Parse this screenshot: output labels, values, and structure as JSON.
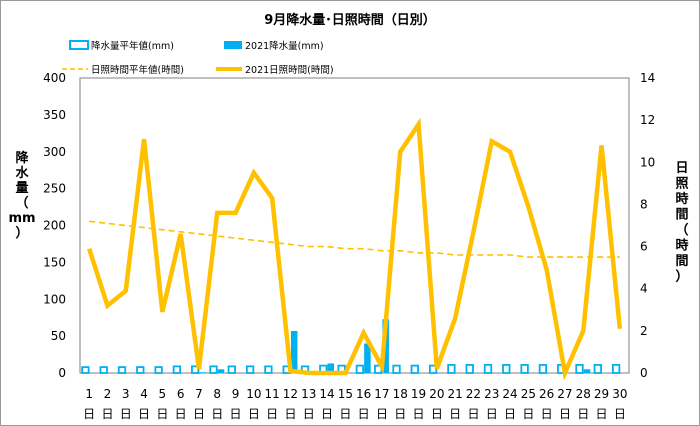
{
  "chart_data": {
    "type": "bar+line",
    "title": "9月降水量･日照時間（日別）",
    "y_left_label": "降水量（mm）",
    "y_right_label": "日照時間（時間）",
    "y_left_range": [
      0,
      400
    ],
    "y_left_ticks": [
      "0",
      "50",
      "100",
      "150",
      "200",
      "250",
      "300",
      "350",
      "400"
    ],
    "y_right_range": [
      0,
      14
    ],
    "y_right_ticks": [
      "0",
      "2",
      "4",
      "6",
      "8",
      "10",
      "12",
      "14"
    ],
    "categories": [
      "1",
      "2",
      "3",
      "4",
      "5",
      "6",
      "7",
      "8",
      "9",
      "10",
      "11",
      "12",
      "13",
      "14",
      "15",
      "16",
      "17",
      "18",
      "19",
      "20",
      "21",
      "22",
      "23",
      "24",
      "25",
      "26",
      "27",
      "28",
      "29",
      "30"
    ],
    "x_suffix": "日",
    "legend": {
      "precip_normal": "降水量平年値(mm)",
      "precip_2021": "2021降水量(mm)",
      "sun_normal": "日照時間平年値(時間)",
      "sun_2021": "2021日照時間(時間)"
    },
    "colors": {
      "precip_normal": "#00b0f0",
      "precip_2021": "#00b0f0",
      "sun_normal": "#ffc000",
      "sun_2021": "#ffc000"
    },
    "series": [
      {
        "name": "降水量平年値(mm)",
        "axis": "left",
        "kind": "bar-outline",
        "values": [
          8,
          8,
          8,
          8,
          8,
          9,
          9,
          9,
          9,
          9,
          9,
          9,
          9,
          10,
          10,
          10,
          10,
          10,
          10,
          10,
          11,
          11,
          11,
          11,
          11,
          11,
          11,
          11,
          11,
          11
        ]
      },
      {
        "name": "2021降水量(mm)",
        "axis": "left",
        "kind": "bar",
        "values": [
          0,
          0,
          0,
          0,
          0,
          0,
          1,
          5,
          0,
          0,
          0,
          57,
          0,
          13,
          0,
          40,
          73,
          0,
          0,
          0,
          0,
          0,
          0,
          0,
          0,
          0,
          0,
          5,
          0,
          0
        ]
      },
      {
        "name": "日照時間平年値(時間)",
        "axis": "right",
        "kind": "dashed-line",
        "values": [
          7.2,
          7.1,
          7.0,
          6.9,
          6.8,
          6.7,
          6.6,
          6.5,
          6.4,
          6.3,
          6.2,
          6.1,
          6.0,
          6.0,
          5.9,
          5.9,
          5.8,
          5.8,
          5.7,
          5.7,
          5.6,
          5.6,
          5.6,
          5.6,
          5.5,
          5.5,
          5.5,
          5.5,
          5.5,
          5.5
        ]
      },
      {
        "name": "2021日照時間(時間)",
        "axis": "right",
        "kind": "line",
        "values": [
          5.9,
          3.2,
          3.9,
          11.1,
          2.9,
          6.6,
          0.2,
          7.6,
          7.6,
          9.5,
          8.3,
          0.1,
          0.0,
          0.0,
          0.0,
          1.9,
          0.3,
          10.5,
          11.8,
          0.2,
          2.6,
          6.7,
          11.0,
          10.5,
          7.9,
          4.9,
          0.0,
          2.0,
          10.8,
          2.1
        ]
      }
    ],
    "grid": false
  }
}
